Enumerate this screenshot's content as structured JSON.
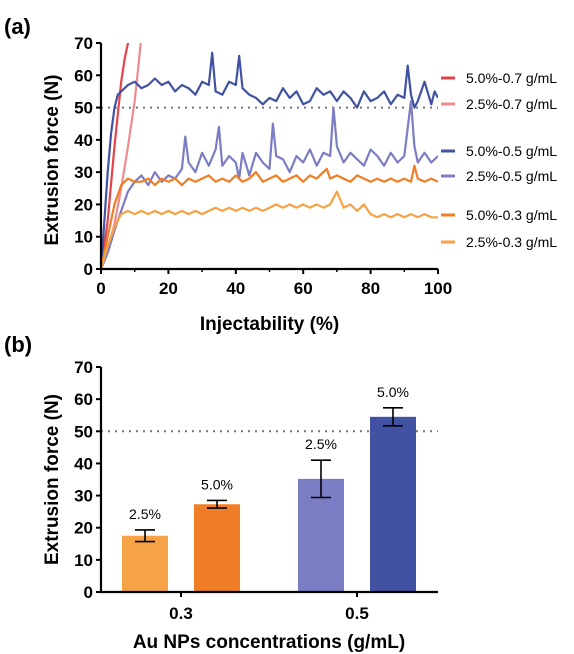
{
  "chart_data": [
    {
      "panel": "(a)",
      "type": "line",
      "xlabel": "Injectability (%)",
      "ylabel": "Extrusion force (N)",
      "xlim": [
        0,
        100
      ],
      "ylim": [
        0,
        70
      ],
      "xticks": [
        0,
        20,
        40,
        60,
        80,
        100
      ],
      "yticks": [
        0,
        10,
        20,
        30,
        40,
        50,
        60,
        70
      ],
      "reference_line": 50,
      "legend_position": "right",
      "series": [
        {
          "name": "5.0%-0.7 g/mL",
          "color": "#e4434b",
          "x": [
            0,
            2,
            4,
            6,
            7,
            8,
            9
          ],
          "y": [
            0,
            15,
            38,
            58,
            65,
            70,
            72
          ]
        },
        {
          "name": "2.5%-0.7 g/mL",
          "color": "#f08a8e",
          "x": [
            0,
            2,
            4,
            6,
            8,
            10,
            11,
            12
          ],
          "y": [
            0,
            6,
            14,
            25,
            38,
            52,
            62,
            72
          ]
        },
        {
          "name": "5.0%-0.5 g/mL",
          "color": "#4152a3",
          "x": [
            0,
            1,
            2,
            3,
            4,
            5,
            6,
            7,
            8,
            10,
            12,
            14,
            16,
            18,
            20,
            22,
            24,
            26,
            28,
            30,
            32,
            33,
            34,
            36,
            38,
            40,
            41,
            42,
            44,
            46,
            48,
            50,
            52,
            54,
            56,
            58,
            60,
            62,
            64,
            66,
            68,
            70,
            72,
            74,
            76,
            78,
            80,
            82,
            84,
            86,
            88,
            90,
            91,
            92,
            93,
            94,
            96,
            98,
            99,
            100
          ],
          "y": [
            0,
            15,
            30,
            42,
            50,
            54,
            55,
            56,
            57,
            58,
            56,
            57,
            59,
            57,
            58,
            55,
            57,
            56,
            54,
            58,
            57,
            67,
            55,
            54,
            58,
            57,
            66,
            56,
            54,
            53,
            51,
            53,
            52,
            56,
            53,
            55,
            51,
            52,
            56,
            54,
            55,
            52,
            55,
            53,
            50,
            55,
            52,
            53,
            55,
            51,
            54,
            53,
            63,
            54,
            50,
            52,
            58,
            51,
            55,
            53
          ]
        },
        {
          "name": "2.5%-0.5 g/mL",
          "color": "#7b7dc4",
          "x": [
            0,
            2,
            4,
            6,
            8,
            10,
            12,
            14,
            16,
            18,
            20,
            22,
            24,
            25,
            26,
            28,
            30,
            32,
            34,
            35,
            36,
            38,
            40,
            41,
            42,
            44,
            46,
            48,
            50,
            51,
            52,
            54,
            56,
            58,
            60,
            62,
            64,
            66,
            68,
            69,
            70,
            72,
            74,
            76,
            78,
            80,
            82,
            84,
            86,
            88,
            90,
            92,
            93,
            94,
            96,
            98,
            100
          ],
          "y": [
            0,
            5,
            12,
            18,
            24,
            27,
            29,
            26,
            30,
            27,
            29,
            28,
            31,
            41,
            33,
            30,
            36,
            32,
            37,
            44,
            32,
            35,
            33,
            28,
            36,
            29,
            36,
            33,
            31,
            45,
            35,
            34,
            30,
            35,
            33,
            37,
            32,
            36,
            35,
            50,
            38,
            33,
            36,
            34,
            32,
            37,
            35,
            32,
            36,
            33,
            35,
            52,
            38,
            33,
            36,
            33,
            35
          ]
        },
        {
          "name": "5.0%-0.3 g/mL",
          "color": "#f07e26",
          "x": [
            0,
            2,
            4,
            6,
            8,
            10,
            12,
            14,
            16,
            18,
            20,
            22,
            24,
            26,
            28,
            30,
            32,
            34,
            36,
            38,
            40,
            42,
            44,
            46,
            48,
            50,
            52,
            54,
            56,
            58,
            60,
            62,
            64,
            66,
            67,
            68,
            70,
            72,
            74,
            76,
            78,
            80,
            82,
            84,
            86,
            88,
            90,
            92,
            93,
            94,
            96,
            98,
            100
          ],
          "y": [
            0,
            10,
            20,
            26,
            28,
            27,
            27,
            28,
            26,
            28,
            27,
            28,
            26,
            28,
            27,
            28,
            29,
            27,
            28,
            27,
            29,
            27,
            28,
            30,
            27,
            28,
            29,
            27,
            28,
            29,
            27,
            29,
            28,
            30,
            31,
            28,
            29,
            28,
            27,
            29,
            28,
            27,
            28,
            27,
            28,
            27,
            28,
            27,
            32,
            28,
            27,
            28,
            27
          ]
        },
        {
          "name": "2.5%-0.3 g/mL",
          "color": "#f5a346",
          "x": [
            0,
            2,
            4,
            6,
            8,
            10,
            12,
            14,
            16,
            18,
            20,
            22,
            24,
            26,
            28,
            30,
            32,
            34,
            36,
            38,
            40,
            42,
            44,
            46,
            48,
            50,
            52,
            54,
            56,
            58,
            60,
            62,
            64,
            66,
            68,
            70,
            72,
            74,
            76,
            78,
            80,
            82,
            84,
            86,
            88,
            90,
            92,
            94,
            96,
            98,
            100
          ],
          "y": [
            0,
            7,
            13,
            17,
            18,
            17,
            18,
            17,
            18,
            17,
            18,
            17,
            18,
            17,
            18,
            17,
            18,
            19,
            18,
            19,
            18,
            19,
            18,
            19,
            18,
            19,
            20,
            19,
            20,
            19,
            20,
            19,
            20,
            19,
            20,
            24,
            19,
            20,
            18,
            20,
            17,
            16,
            17,
            16,
            17,
            16,
            17,
            16,
            17,
            16,
            16
          ]
        }
      ]
    },
    {
      "panel": "(b)",
      "type": "bar",
      "xlabel": "Au NPs concentrations (g/mL)",
      "ylabel": "Extrusion force (N)",
      "ylim": [
        0,
        70
      ],
      "yticks": [
        0,
        10,
        20,
        30,
        40,
        50,
        60,
        70
      ],
      "categories": [
        "0.3",
        "0.5"
      ],
      "reference_line": 50,
      "bars": [
        {
          "category": "0.3",
          "label": "2.5%",
          "value": 17.5,
          "error": 1.8,
          "color": "#f5a346"
        },
        {
          "category": "0.3",
          "label": "5.0%",
          "value": 27.3,
          "error": 1.2,
          "color": "#f07e26"
        },
        {
          "category": "0.5",
          "label": "2.5%",
          "value": 35.2,
          "error": 5.8,
          "color": "#7b7dc4"
        },
        {
          "category": "0.5",
          "label": "5.0%",
          "value": 54.5,
          "error": 2.8,
          "color": "#4152a3"
        }
      ]
    }
  ]
}
